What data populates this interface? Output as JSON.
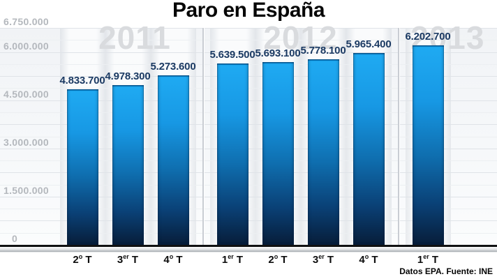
{
  "title": "Paro en España",
  "footer": "Datos EPA. Fuente: INE",
  "colors": {
    "bar_top": "#1faaf2",
    "bar_bottom": "#071d39",
    "value_label": "#1b3a63",
    "watermark": "#d9dbde",
    "y_label": "#b4b8bd",
    "grid_strong": "#dfe3e8",
    "grid_faint": "#eceff2",
    "axis": "#101112"
  },
  "chart_data": {
    "type": "bar",
    "title": "Paro en España",
    "source": "Datos EPA. Fuente: INE",
    "ylim": [
      0,
      6750000
    ],
    "grid": true,
    "categories": [
      {
        "pre": "2",
        "sup": "o",
        "post": " T"
      },
      {
        "pre": "3",
        "sup": "er",
        "post": " T"
      },
      {
        "pre": "4",
        "sup": "o",
        "post": " T"
      },
      {
        "pre": "1",
        "sup": "er",
        "post": " T"
      },
      {
        "pre": "2",
        "sup": "o",
        "post": " T"
      },
      {
        "pre": "3",
        "sup": "er",
        "post": " T"
      },
      {
        "pre": "4",
        "sup": "o",
        "post": " T"
      },
      {
        "pre": "1",
        "sup": "er",
        "post": " T"
      }
    ],
    "values": [
      4833700,
      4978300,
      5273600,
      5639500,
      5693100,
      5778100,
      5965400,
      6202700
    ],
    "value_labels": [
      "4.833.700",
      "4.978.300",
      "5.273.600",
      "5.639.500",
      "5.693.100",
      "5.778.100",
      "5.965.400",
      "6.202.700"
    ],
    "groups": [
      {
        "year": "2011",
        "bar_count": 3
      },
      {
        "year": "2012",
        "bar_count": 4
      },
      {
        "year": "2013",
        "bar_count": 1
      }
    ],
    "y_ticks": [
      {
        "value": 6750000,
        "label": "6.750.000"
      },
      {
        "value": 6000000,
        "label": "6.000.000"
      },
      {
        "value": 4500000,
        "label": "4.500.000"
      },
      {
        "value": 3000000,
        "label": "3.000.000"
      },
      {
        "value": 1500000,
        "label": "1.500.000"
      },
      {
        "value": 0,
        "label": "0"
      }
    ],
    "grid_minor_step": 375000,
    "grid_major_step": 750000
  }
}
